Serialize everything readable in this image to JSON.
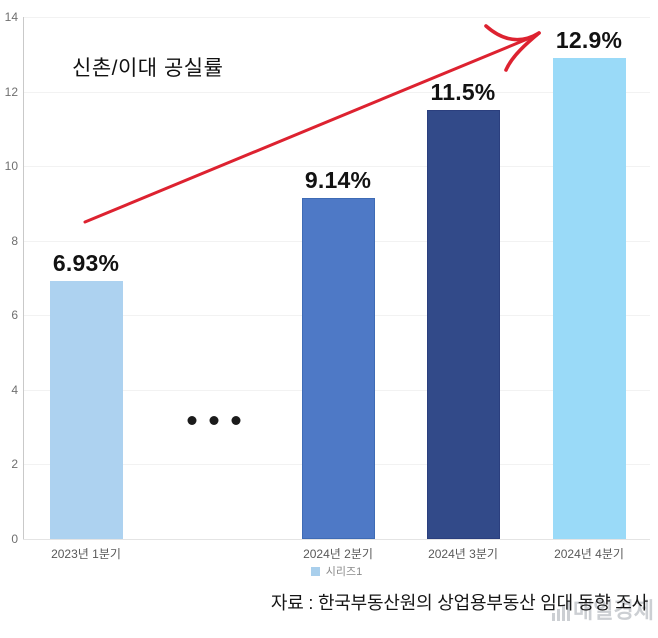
{
  "chart_data": {
    "type": "bar",
    "title": "신촌/이대 공실률",
    "categories": [
      "2023년 1분기",
      "2024년 2분기",
      "2024년 3분기",
      "2024년 4분기"
    ],
    "values": [
      6.93,
      9.14,
      11.5,
      12.9
    ],
    "value_labels": [
      "6.93%",
      "9.14%",
      "11.5%",
      "12.9%"
    ],
    "unit": "%",
    "ylim": [
      0,
      14
    ],
    "yticks": [
      0,
      2,
      4,
      6,
      8,
      10,
      12,
      14
    ],
    "grid": true,
    "bar_colors": [
      "#ADD2F0",
      "#4E79C6",
      "#324A89",
      "#9ADAF8"
    ],
    "bar_border_colors": [
      "#ADD2F0",
      "#3E6BB5",
      "#2B3F7E",
      "#9ADAF8"
    ],
    "legend": {
      "label": "시리즈1",
      "swatch_color": "#A9CFEC",
      "position": "bottom"
    },
    "annotations": {
      "ellipsis_dots": 3,
      "trend_arrow": "rising from left to upper right",
      "trend_arrow_color": "#DD2230"
    }
  },
  "source_line": "자료 : 한국부동산원의 상업용부동산 임대 동향 조사",
  "watermark": {
    "text": "매일경제"
  },
  "colors": {
    "background": "#FFFFFF",
    "gridline": "#F2F2F2",
    "zero_gridline": "#E4E4E4",
    "axis_line": "#C9C9C9",
    "axis_text": "#6F6F6F",
    "category_text": "#595959",
    "legend_text": "#8A8A8A",
    "value_label_text": "#121212"
  }
}
